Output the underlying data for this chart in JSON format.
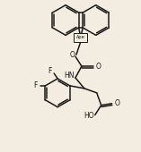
{
  "bg_color": "#f2ede0",
  "line_color": "#1a1a1a",
  "lw": 1.1,
  "dw": 1.0,
  "fig_width": 1.57,
  "fig_height": 1.7,
  "dpi": 100,
  "label_box_text": "Ape",
  "label_NH": "HN",
  "label_HO": "HO",
  "label_F": "F",
  "label_O1": "O",
  "label_O2": "O"
}
